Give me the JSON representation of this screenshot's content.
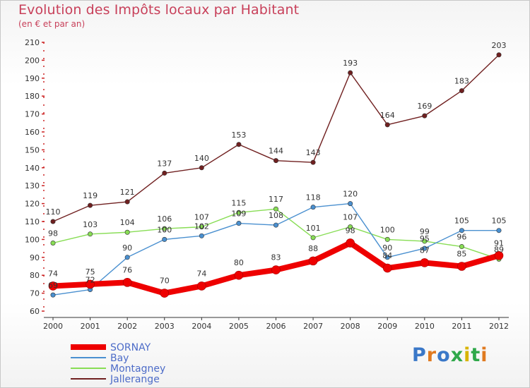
{
  "chart_data": {
    "type": "line",
    "title": "Evolution des Impôts locaux par Habitant",
    "subtitle": "(en € et par an)",
    "xlabel": "",
    "ylabel": "",
    "ylim": [
      60,
      210
    ],
    "yticks": [
      "60",
      "70",
      "80",
      "90",
      "100",
      "110",
      "120",
      "130",
      "140",
      "150",
      "160",
      "170",
      "180",
      "190",
      "200",
      "210"
    ],
    "categories": [
      "2000",
      "2001",
      "2002",
      "2003",
      "2004",
      "2005",
      "2006",
      "2007",
      "2008",
      "2009",
      "2010",
      "2011",
      "2012"
    ],
    "series": [
      {
        "name": "SORNAY",
        "color": "#ee0000",
        "values": [
          74,
          75,
          76,
          70,
          74,
          80,
          83,
          88,
          98,
          84,
          87,
          85,
          91
        ]
      },
      {
        "name": "Bay",
        "color": "#4a90d0",
        "values": [
          69,
          72,
          90,
          100,
          102,
          109,
          108,
          118,
          120,
          90,
          95,
          105,
          105
        ]
      },
      {
        "name": "Montagney",
        "color": "#88dd55",
        "values": [
          98,
          103,
          104,
          106,
          107,
          115,
          117,
          101,
          107,
          100,
          99,
          96,
          89
        ]
      },
      {
        "name": "Jallerange",
        "color": "#702020",
        "values": [
          110,
          119,
          121,
          137,
          140,
          153,
          144,
          143,
          193,
          164,
          169,
          183,
          203
        ]
      }
    ]
  },
  "logo": {
    "text": "Proxiti",
    "colors": [
      "#3a78c8",
      "#e07a20",
      "#3a78c8",
      "#2fa84a",
      "#d8b400",
      "#2fa84a",
      "#e07a20"
    ]
  }
}
